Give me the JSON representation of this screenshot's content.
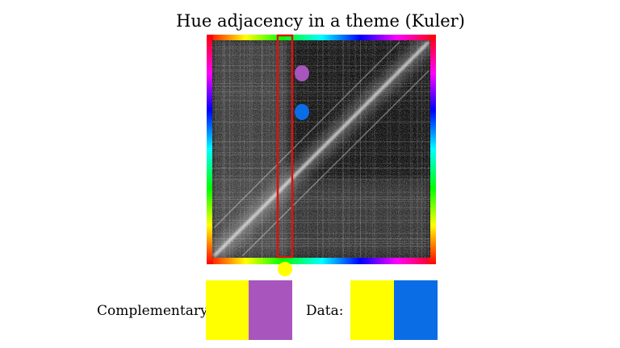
{
  "title": "Hue adjacency in a theme (Kuler)",
  "legend": {
    "complementary_label": "Complementary:",
    "data_label": "Data:"
  },
  "colors": {
    "selected_hue": "#ffff00",
    "complementary": "#a855bd",
    "data_match": "#0a6de6",
    "highlight_box": "#e01010"
  }
}
